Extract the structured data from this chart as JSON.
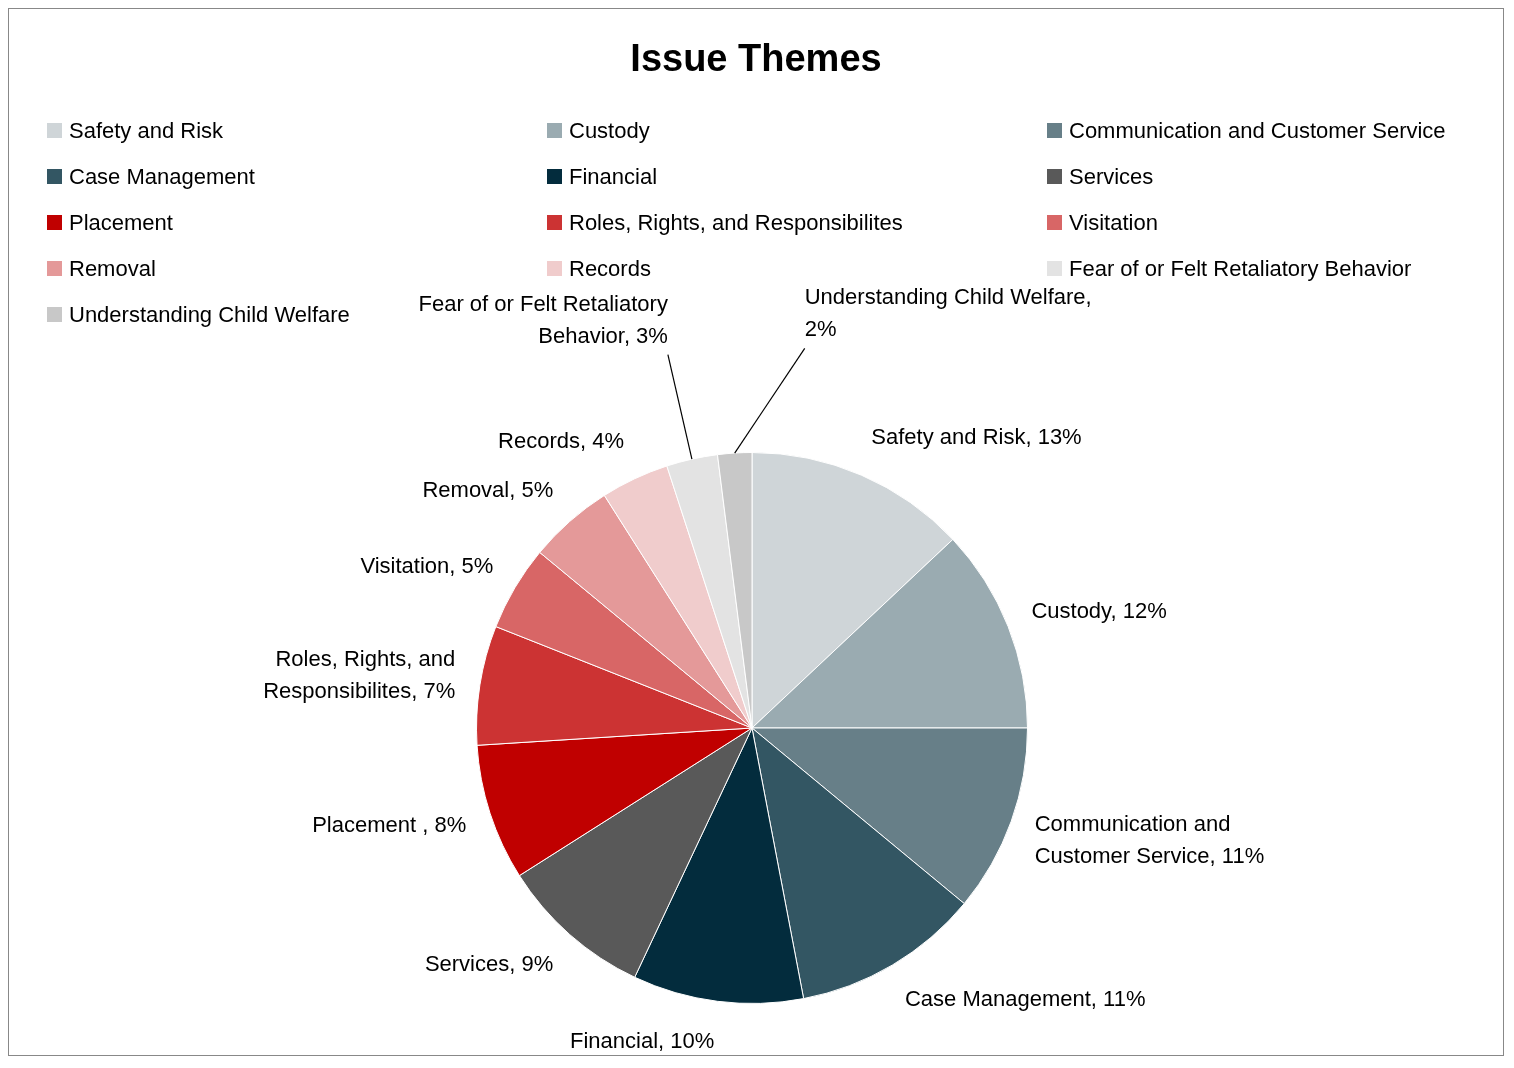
{
  "chart_data": {
    "type": "pie",
    "title": "Issue Themes",
    "categories": [
      "Safety and Risk",
      "Custody",
      "Communication and Customer Service",
      "Case Management",
      "Financial",
      "Services",
      "Placement ",
      "Roles, Rights, and Responsibilites",
      "Visitation",
      "Removal",
      "Records",
      "Fear of or Felt Retaliatory Behavior",
      "Understanding Child Welfare"
    ],
    "values": [
      13,
      12,
      11,
      11,
      10,
      9,
      8,
      7,
      5,
      5,
      4,
      3,
      2
    ],
    "colors": [
      "#cfd5d8",
      "#9aabb1",
      "#677f88",
      "#335663",
      "#032c3d",
      "#595959",
      "#c00000",
      "#cc3333",
      "#d86666",
      "#e49999",
      "#f0cccc",
      "#e3e3e3",
      "#c8c8c8"
    ],
    "value_labels": [
      "Safety and Risk, 13%",
      "Custody, 12%",
      "Communication and Customer Service, 11%",
      "Case Management, 11%",
      "Financial, 10%",
      "Services, 9%",
      "Placement , 8%",
      "Roles, Rights, and Responsibilites, 7%",
      "Visitation, 5%",
      "Removal, 5%",
      "Records, 4%",
      "Fear of or Felt Retaliatory Behavior, 3%",
      "Understanding Child Welfare, 2%"
    ],
    "legend": "top"
  }
}
